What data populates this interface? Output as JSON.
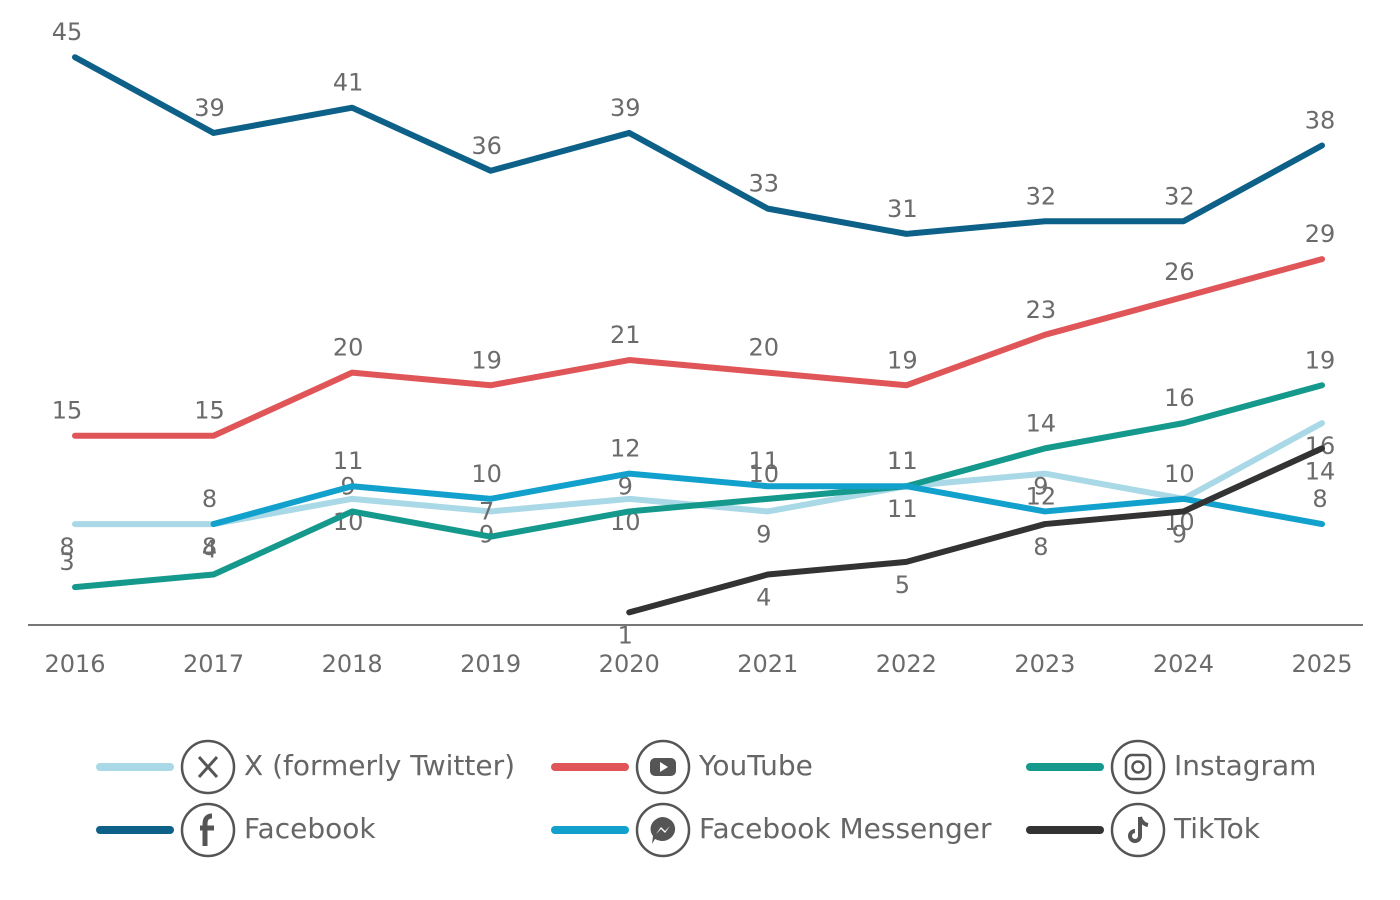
{
  "chart_data": {
    "type": "line",
    "categories": [
      "2016",
      "2017",
      "2018",
      "2019",
      "2020",
      "2021",
      "2022",
      "2023",
      "2024",
      "2025"
    ],
    "ylim": [
      0,
      47
    ],
    "series": [
      {
        "name": "X (formerly Twitter)",
        "color": "#a9d8e6",
        "values": [
          8,
          8,
          10,
          9,
          10,
          9,
          11,
          12,
          10,
          16
        ]
      },
      {
        "name": "YouTube",
        "color": "#e05558",
        "values": [
          15,
          15,
          20,
          19,
          21,
          20,
          19,
          23,
          26,
          29
        ]
      },
      {
        "name": "Instagram",
        "color": "#14998c",
        "values": [
          3,
          4,
          9,
          7,
          9,
          10,
          11,
          14,
          16,
          19
        ]
      },
      {
        "name": "Facebook",
        "color": "#0d6189",
        "values": [
          45,
          39,
          41,
          36,
          39,
          33,
          31,
          32,
          32,
          38
        ]
      },
      {
        "name": "Facebook Messenger",
        "color": "#12a1cd",
        "values": [
          null,
          8,
          11,
          10,
          12,
          11,
          11,
          9,
          10,
          8
        ]
      },
      {
        "name": "TikTok",
        "color": "#333333",
        "values": [
          null,
          null,
          null,
          null,
          1,
          4,
          5,
          8,
          9,
          14
        ]
      }
    ]
  }
}
